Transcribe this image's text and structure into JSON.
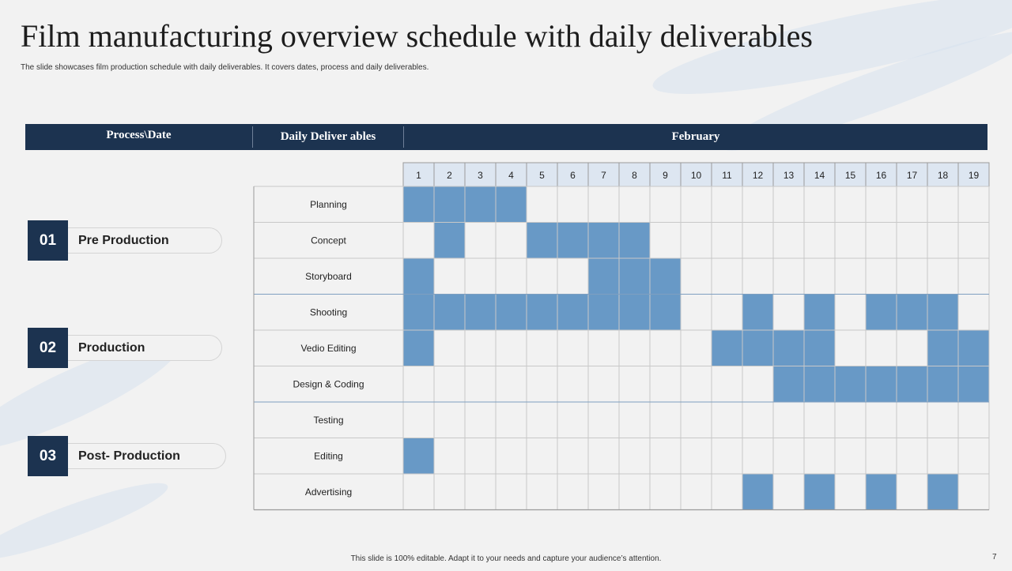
{
  "slide": {
    "title": "Film manufacturing overview schedule with daily deliverables",
    "subtitle": "The slide showcases film production schedule with daily deliverables. It covers dates, process and daily deliverables.",
    "footer": "This slide is 100% editable. Adapt it to your needs and capture your audience’s attention.",
    "page_number": "7"
  },
  "header": {
    "process_label": "Process\\Date",
    "deliverables_label": "Daily Deliver ables",
    "month_label": "February"
  },
  "phases": [
    {
      "number": "01",
      "label": "Pre Production"
    },
    {
      "number": "02",
      "label": "Production"
    },
    {
      "number": "03",
      "label": "Post- Production"
    }
  ],
  "colors": {
    "navy": "#1c3350",
    "filled": "#6899c6",
    "grid": "#c8c8c8",
    "row_divider": "#7f9fc0",
    "day_header_bg": "#dde6f1"
  },
  "chart_data": {
    "type": "table",
    "x_label": "February",
    "days": [
      1,
      2,
      3,
      4,
      5,
      6,
      7,
      8,
      9,
      10,
      11,
      12,
      13,
      14,
      15,
      16,
      17,
      18,
      19
    ],
    "tasks": [
      {
        "name": "Planning",
        "days": [
          1,
          2,
          3,
          4
        ]
      },
      {
        "name": "Concept",
        "days": [
          2,
          5,
          6,
          7,
          8
        ]
      },
      {
        "name": "Storyboard",
        "days": [
          1,
          7,
          8,
          9
        ]
      },
      {
        "name": "Shooting",
        "days": [
          1,
          2,
          3,
          4,
          5,
          6,
          7,
          8,
          9,
          12,
          14,
          16,
          17,
          18
        ]
      },
      {
        "name": "Vedio Editing",
        "days": [
          1,
          11,
          12,
          13,
          14,
          18,
          19
        ]
      },
      {
        "name": "Design & Coding",
        "days": [
          13,
          14,
          15,
          16,
          17,
          18,
          19
        ]
      },
      {
        "name": "Testing",
        "days": []
      },
      {
        "name": "Editing",
        "days": [
          1
        ]
      },
      {
        "name": "Advertising",
        "days": [
          12,
          14,
          16,
          18
        ]
      }
    ]
  }
}
